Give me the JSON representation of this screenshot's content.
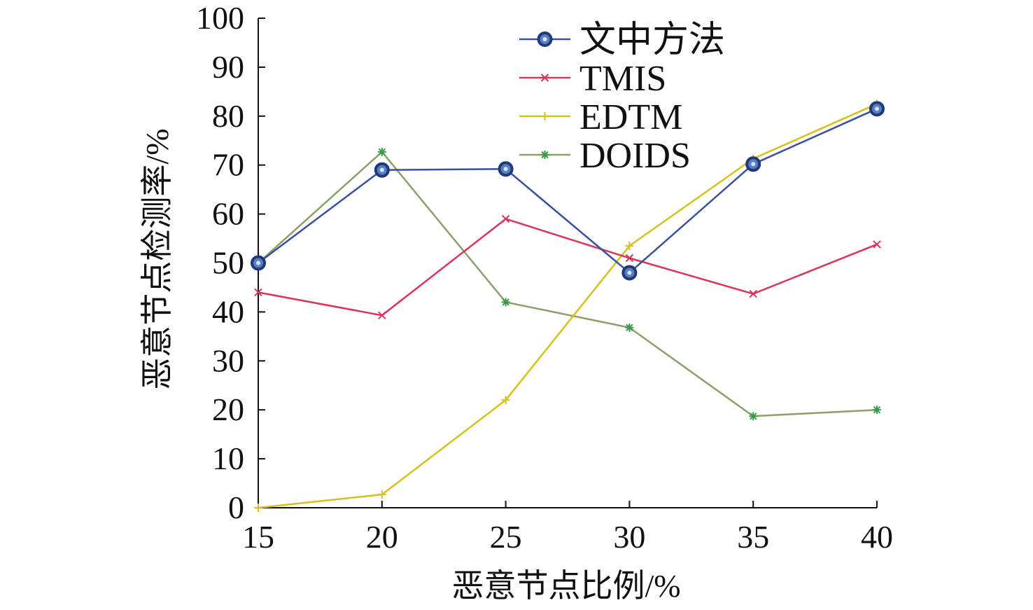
{
  "chart_data": {
    "type": "line",
    "title": "",
    "xlabel": "恶意节点比例/%",
    "ylabel": "恶意节点检测率/%",
    "x": [
      15,
      20,
      25,
      30,
      35,
      40
    ],
    "xlim": [
      15,
      40
    ],
    "ylim": [
      0,
      100
    ],
    "xticks": [
      "15",
      "20",
      "25",
      "30",
      "35",
      "40"
    ],
    "yticks": [
      "0",
      "10",
      "20",
      "30",
      "40",
      "50",
      "60",
      "70",
      "80",
      "90",
      "100"
    ],
    "grid": false,
    "legend_position": "top-right",
    "series": [
      {
        "name": "文中方法",
        "values": [
          50.0,
          69.0,
          69.2,
          48.0,
          70.2,
          81.5
        ],
        "color": "#3b4f9c",
        "marker": "circle"
      },
      {
        "name": "TMIS",
        "values": [
          44.0,
          39.3,
          59.0,
          51.0,
          43.7,
          53.8
        ],
        "color": "#d9345a",
        "marker": "x"
      },
      {
        "name": "EDTM",
        "values": [
          0.0,
          2.7,
          22.0,
          53.5,
          71.3,
          82.5
        ],
        "color": "#d4c21a",
        "marker": "plus"
      },
      {
        "name": "DOIDS",
        "values": [
          50.0,
          72.7,
          42.0,
          36.8,
          18.7,
          20.0
        ],
        "color": "#8aa066",
        "marker": "star"
      }
    ]
  }
}
